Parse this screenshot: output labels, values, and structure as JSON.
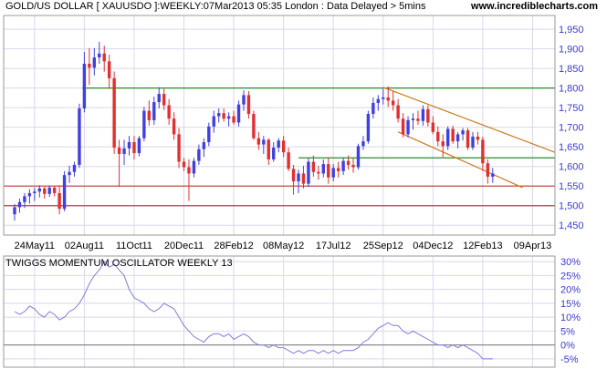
{
  "header": {
    "title": "GOLD/US DOLLAR [ XAUUSDO ]:WEEKLY:07Mar2013 05:35 London : Data Delayed > 5mins",
    "site": "www.incrediblecharts.com"
  },
  "colors": {
    "up": "#4040e0",
    "down": "#e03030",
    "resistance": "#2c8a2c",
    "support": "#c43a3a",
    "channel": "#cc7a1a",
    "oscillator": "#7d7de0",
    "zero_line": "#777777",
    "axis_text": "#3b3bd0",
    "grid": "#d8d8ec"
  },
  "chart_data": [
    {
      "type": "candlestick",
      "name": "price",
      "y_ticks": [
        "1,950",
        "1,900",
        "1,850",
        "1,800",
        "1,750",
        "1,700",
        "1,650",
        "1,600",
        "1,550",
        "1,500",
        "1,450"
      ],
      "y_tick_values": [
        1950,
        1900,
        1850,
        1800,
        1750,
        1700,
        1650,
        1600,
        1550,
        1500,
        1450
      ],
      "ylim": [
        1425,
        1985
      ],
      "x_ticks": [
        "24May11",
        "02Aug11",
        "11Oct11",
        "20Dec11",
        "28Feb12",
        "08May12",
        "17Jul12",
        "25Sep12",
        "04Dec12",
        "12Feb13",
        "09Apr13"
      ],
      "x_tick_positions_week": [
        4,
        14,
        24,
        34,
        44,
        54,
        64,
        74,
        84,
        94,
        104
      ],
      "xlim_week": [
        -2.2,
        108.5
      ],
      "ohlc": [
        [
          1478,
          1504,
          1462,
          1496
        ],
        [
          1496,
          1518,
          1482,
          1509
        ],
        [
          1509,
          1532,
          1494,
          1524
        ],
        [
          1524,
          1542,
          1505,
          1532
        ],
        [
          1532,
          1546,
          1512,
          1536
        ],
        [
          1536,
          1552,
          1521,
          1544
        ],
        [
          1544,
          1548,
          1518,
          1530
        ],
        [
          1530,
          1552,
          1522,
          1546
        ],
        [
          1546,
          1550,
          1524,
          1532
        ],
        [
          1532,
          1552,
          1478,
          1492
        ],
        [
          1492,
          1588,
          1486,
          1578
        ],
        [
          1578,
          1602,
          1558,
          1586
        ],
        [
          1586,
          1612,
          1574,
          1604
        ],
        [
          1604,
          1760,
          1596,
          1748
        ],
        [
          1748,
          1892,
          1738,
          1862
        ],
        [
          1862,
          1902,
          1808,
          1852
        ],
        [
          1852,
          1902,
          1832,
          1878
        ],
        [
          1878,
          1918,
          1862,
          1888
        ],
        [
          1888,
          1908,
          1842,
          1868
        ],
        [
          1868,
          1885,
          1798,
          1825
        ],
        [
          1825,
          1842,
          1632,
          1648
        ],
        [
          1648,
          1668,
          1548,
          1632
        ],
        [
          1632,
          1668,
          1604,
          1646
        ],
        [
          1646,
          1678,
          1628,
          1662
        ],
        [
          1662,
          1678,
          1618,
          1634
        ],
        [
          1634,
          1678,
          1626,
          1672
        ],
        [
          1672,
          1752,
          1664,
          1742
        ],
        [
          1742,
          1768,
          1704,
          1718
        ],
        [
          1718,
          1778,
          1706,
          1764
        ],
        [
          1764,
          1802,
          1748,
          1785
        ],
        [
          1785,
          1798,
          1744,
          1756
        ],
        [
          1756,
          1772,
          1706,
          1722
        ],
        [
          1722,
          1738,
          1668,
          1682
        ],
        [
          1682,
          1698,
          1596,
          1612
        ],
        [
          1612,
          1622,
          1588,
          1598
        ],
        [
          1598,
          1618,
          1512,
          1582
        ],
        [
          1582,
          1622,
          1572,
          1614
        ],
        [
          1614,
          1656,
          1604,
          1644
        ],
        [
          1644,
          1672,
          1624,
          1662
        ],
        [
          1662,
          1712,
          1652,
          1702
        ],
        [
          1702,
          1742,
          1686,
          1728
        ],
        [
          1728,
          1748,
          1712,
          1736
        ],
        [
          1736,
          1748,
          1714,
          1722
        ],
        [
          1722,
          1738,
          1702,
          1728
        ],
        [
          1728,
          1742,
          1706,
          1712
        ],
        [
          1712,
          1768,
          1702,
          1758
        ],
        [
          1758,
          1794,
          1742,
          1782
        ],
        [
          1782,
          1792,
          1722,
          1734
        ],
        [
          1734,
          1742,
          1668,
          1672
        ],
        [
          1672,
          1688,
          1642,
          1656
        ],
        [
          1656,
          1678,
          1632,
          1668
        ],
        [
          1668,
          1672,
          1604,
          1618
        ],
        [
          1618,
          1662,
          1612,
          1648
        ],
        [
          1648,
          1672,
          1636,
          1666
        ],
        [
          1666,
          1678,
          1624,
          1636
        ],
        [
          1636,
          1648,
          1588,
          1594
        ],
        [
          1594,
          1604,
          1528,
          1562
        ],
        [
          1562,
          1592,
          1532,
          1582
        ],
        [
          1582,
          1602,
          1544,
          1556
        ],
        [
          1556,
          1622,
          1548,
          1612
        ],
        [
          1612,
          1628,
          1574,
          1586
        ],
        [
          1586,
          1602,
          1566,
          1582
        ],
        [
          1582,
          1618,
          1572,
          1606
        ],
        [
          1606,
          1622,
          1556,
          1572
        ],
        [
          1572,
          1606,
          1562,
          1596
        ],
        [
          1596,
          1612,
          1572,
          1588
        ],
        [
          1588,
          1622,
          1578,
          1614
        ],
        [
          1614,
          1628,
          1592,
          1604
        ],
        [
          1604,
          1622,
          1584,
          1598
        ],
        [
          1598,
          1658,
          1592,
          1652
        ],
        [
          1652,
          1678,
          1642,
          1664
        ],
        [
          1664,
          1742,
          1658,
          1734
        ],
        [
          1734,
          1776,
          1722,
          1762
        ],
        [
          1762,
          1782,
          1742,
          1772
        ],
        [
          1772,
          1798,
          1758,
          1776
        ],
        [
          1776,
          1804,
          1752,
          1768
        ],
        [
          1768,
          1792,
          1742,
          1756
        ],
        [
          1756,
          1772,
          1712,
          1722
        ],
        [
          1722,
          1736,
          1674,
          1682
        ],
        [
          1682,
          1728,
          1674,
          1718
        ],
        [
          1718,
          1736,
          1694,
          1722
        ],
        [
          1722,
          1742,
          1706,
          1716
        ],
        [
          1716,
          1756,
          1704,
          1746
        ],
        [
          1746,
          1756,
          1702,
          1712
        ],
        [
          1712,
          1728,
          1682,
          1688
        ],
        [
          1688,
          1702,
          1652,
          1664
        ],
        [
          1664,
          1682,
          1624,
          1652
        ],
        [
          1652,
          1702,
          1642,
          1696
        ],
        [
          1696,
          1704,
          1658,
          1664
        ],
        [
          1664,
          1688,
          1646,
          1682
        ],
        [
          1682,
          1698,
          1666,
          1692
        ],
        [
          1692,
          1698,
          1642,
          1648
        ],
        [
          1648,
          1688,
          1642,
          1676
        ],
        [
          1676,
          1688,
          1656,
          1668
        ],
        [
          1668,
          1676,
          1588,
          1608
        ],
        [
          1608,
          1618,
          1556,
          1574
        ],
        [
          1574,
          1596,
          1558,
          1582
        ]
      ],
      "resistance_level": 1800,
      "pivot_level": 1622,
      "support_levels": [
        1550,
        1500
      ],
      "channel_upper": {
        "from": [
          74,
          1802
        ],
        "to": [
          108.5,
          1636
        ]
      },
      "channel_lower": {
        "from": [
          77,
          1688
        ],
        "to": [
          102,
          1546
        ]
      }
    },
    {
      "type": "line",
      "name": "TWIGGS MOMENTUM OSCILLATOR WEEKLY 13",
      "y_ticks": [
        "30%",
        "25%",
        "20%",
        "15%",
        "10%",
        "5%",
        "0%",
        "-5%"
      ],
      "y_tick_values": [
        30,
        25,
        20,
        15,
        10,
        5,
        0,
        -5
      ],
      "ylim": [
        -8,
        32
      ],
      "values": [
        12,
        11,
        12,
        14,
        13,
        11,
        10,
        12,
        11,
        9,
        10,
        12,
        13,
        15,
        18,
        22,
        25,
        27,
        30,
        28,
        29,
        27,
        25,
        20,
        17,
        16,
        15,
        13,
        12,
        13,
        15,
        14,
        13,
        10,
        7,
        5,
        3,
        2,
        1,
        3,
        4,
        4,
        3,
        4,
        2,
        3,
        4,
        3,
        1,
        0,
        0,
        -1,
        0,
        -1,
        -1,
        -2,
        -3,
        -2,
        -3,
        -2,
        -2,
        -3,
        -2,
        -3,
        -2,
        -3,
        -2,
        -2,
        -2,
        -1,
        1,
        2,
        4,
        6,
        7,
        8,
        7,
        7,
        5,
        4,
        5,
        4,
        3,
        2,
        1,
        0,
        0,
        -1,
        0,
        -1,
        0,
        -1,
        -2,
        -3,
        -5,
        -5,
        -5
      ]
    }
  ]
}
